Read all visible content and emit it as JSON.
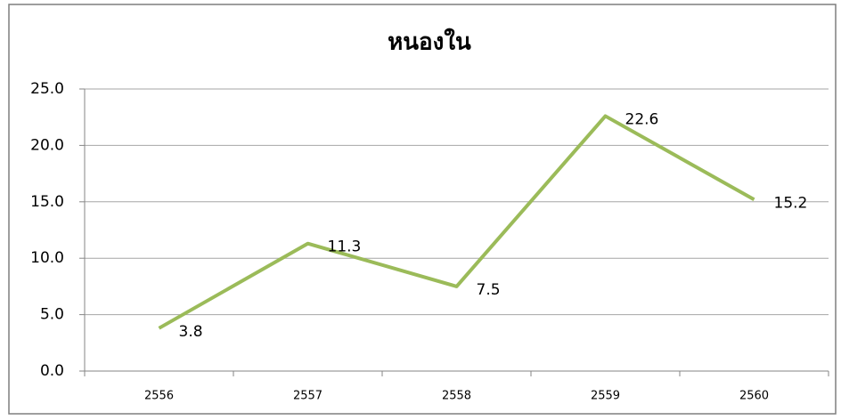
{
  "chart_data": {
    "type": "line",
    "title": "หนองใน",
    "categories": [
      "2556",
      "2557",
      "2558",
      "2559",
      "2560"
    ],
    "series": [
      {
        "name": "หนองใน",
        "color": "#9bbb59",
        "values": [
          3.8,
          11.3,
          7.5,
          22.6,
          15.2
        ]
      }
    ],
    "ylim": [
      0,
      25
    ],
    "yticks": [
      {
        "value": 0,
        "label": "0.0"
      },
      {
        "value": 5,
        "label": "5.0"
      },
      {
        "value": 10,
        "label": "10.0"
      },
      {
        "value": 15,
        "label": "15.0"
      },
      {
        "value": 20,
        "label": "20.0"
      },
      {
        "value": 25,
        "label": "25.0"
      }
    ],
    "grid": true
  }
}
